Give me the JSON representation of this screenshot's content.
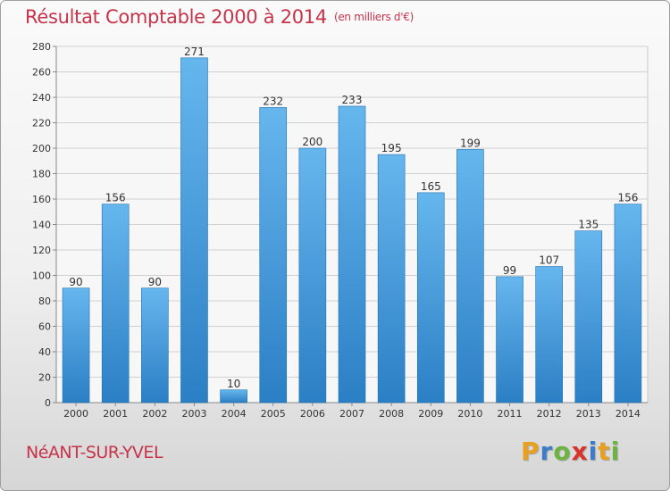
{
  "header": {
    "title": "Résultat Comptable 2000 à 2014",
    "subtitle": "(en milliers d'€)"
  },
  "footer": {
    "location": "NéANT-SUR-YVEL",
    "brand": "Proxiti",
    "brand_letters": [
      {
        "ch": "P",
        "color": "#e8a020"
      },
      {
        "ch": "r",
        "color": "#3d7cc9"
      },
      {
        "ch": "o",
        "color": "#6cb33f"
      },
      {
        "ch": "x",
        "color": "#d9342b"
      },
      {
        "ch": "i",
        "color": "#3d7cc9"
      },
      {
        "ch": "t",
        "color": "#e8a020"
      },
      {
        "ch": "i",
        "color": "#6cb33f"
      }
    ]
  },
  "colors": {
    "title": "#c8334a",
    "bar_light": "#66b6ee",
    "bar_dark": "#2b7fc4",
    "grid": "#d0d0d0",
    "axis_text": "#333333"
  },
  "chart_data": {
    "type": "bar",
    "title": "Résultat Comptable 2000 à 2014",
    "xlabel": "",
    "ylabel": "",
    "ylim": [
      0,
      280
    ],
    "yticks": [
      0,
      20,
      40,
      60,
      80,
      100,
      120,
      140,
      160,
      180,
      200,
      220,
      240,
      260,
      280
    ],
    "categories": [
      "2000",
      "2001",
      "2002",
      "2003",
      "2004",
      "2005",
      "2006",
      "2007",
      "2008",
      "2009",
      "2010",
      "2011",
      "2012",
      "2013",
      "2014"
    ],
    "values": [
      90,
      156,
      90,
      271,
      10,
      232,
      200,
      233,
      195,
      165,
      199,
      99,
      107,
      135,
      156
    ],
    "grid": true
  }
}
